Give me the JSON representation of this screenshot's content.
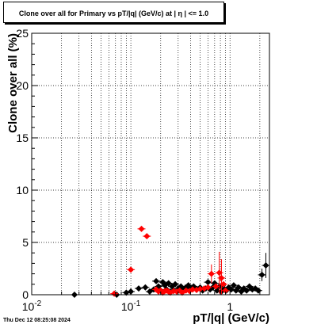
{
  "chart_data": {
    "type": "scatter",
    "title": "Clone  over all for Primary vs pT/|q| (GeV/c) at |  η  | <= 1.0",
    "xlabel": "pT/|q| (GeV/c)",
    "ylabel": "Clone  over all (%)",
    "x_scale": "log",
    "xlim": [
      0.01,
      2.5
    ],
    "ylim": [
      0,
      25
    ],
    "x_ticks": [
      {
        "value": 0.01,
        "base": "10",
        "exp": "-2"
      },
      {
        "value": 0.1,
        "base": "10",
        "exp": "-1"
      },
      {
        "value": 1,
        "base": "1",
        "exp": ""
      }
    ],
    "y_ticks": [
      "0",
      "5",
      "10",
      "15",
      "20",
      "25"
    ],
    "y_tick_values": [
      0,
      5,
      10,
      15,
      20,
      25
    ],
    "grid": true,
    "series": [
      {
        "color": "#000000",
        "marker": "diamond",
        "points": [
          {
            "x": 0.027,
            "y": 0.0
          },
          {
            "x": 0.072,
            "y": 0.0
          },
          {
            "x": 0.09,
            "y": 0.2
          },
          {
            "x": 0.1,
            "y": 0.3
          },
          {
            "x": 0.12,
            "y": 0.6
          },
          {
            "x": 0.14,
            "y": 0.7
          },
          {
            "x": 0.155,
            "y": 0.3
          },
          {
            "x": 0.17,
            "y": 0.5
          },
          {
            "x": 0.18,
            "y": 1.3
          },
          {
            "x": 0.19,
            "y": 0.8
          },
          {
            "x": 0.2,
            "y": 0.4
          },
          {
            "x": 0.21,
            "y": 1.2
          },
          {
            "x": 0.22,
            "y": 0.9
          },
          {
            "x": 0.23,
            "y": 0.5
          },
          {
            "x": 0.24,
            "y": 1.1
          },
          {
            "x": 0.25,
            "y": 0.3
          },
          {
            "x": 0.26,
            "y": 0.8
          },
          {
            "x": 0.27,
            "y": 0.4
          },
          {
            "x": 0.28,
            "y": 1.0
          },
          {
            "x": 0.3,
            "y": 0.6
          },
          {
            "x": 0.32,
            "y": 0.8
          },
          {
            "x": 0.34,
            "y": 0.5
          },
          {
            "x": 0.36,
            "y": 0.7
          },
          {
            "x": 0.38,
            "y": 0.9
          },
          {
            "x": 0.4,
            "y": 0.6
          },
          {
            "x": 0.43,
            "y": 0.8
          },
          {
            "x": 0.46,
            "y": 0.5
          },
          {
            "x": 0.5,
            "y": 0.7
          },
          {
            "x": 0.53,
            "y": 0.4
          },
          {
            "x": 0.57,
            "y": 0.6
          },
          {
            "x": 0.6,
            "y": 1.2
          },
          {
            "x": 0.63,
            "y": 0.5
          },
          {
            "x": 0.67,
            "y": 0.7
          },
          {
            "x": 0.7,
            "y": 1.1
          },
          {
            "x": 0.74,
            "y": 0.4
          },
          {
            "x": 0.78,
            "y": 0.8
          },
          {
            "x": 0.82,
            "y": 0.3
          },
          {
            "x": 0.87,
            "y": 0.6
          },
          {
            "x": 0.92,
            "y": 0.4
          },
          {
            "x": 0.97,
            "y": 0.7
          },
          {
            "x": 1.03,
            "y": 0.5
          },
          {
            "x": 1.09,
            "y": 0.9
          },
          {
            "x": 1.15,
            "y": 0.4
          },
          {
            "x": 1.22,
            "y": 0.7
          },
          {
            "x": 1.3,
            "y": 0.3
          },
          {
            "x": 1.38,
            "y": 0.6
          },
          {
            "x": 1.47,
            "y": 0.4
          },
          {
            "x": 1.57,
            "y": 0.8
          },
          {
            "x": 1.68,
            "y": 0.5
          },
          {
            "x": 1.8,
            "y": 0.6
          },
          {
            "x": 1.93,
            "y": 0.4
          },
          {
            "x": 2.1,
            "y": 1.9,
            "err": 0.6
          },
          {
            "x": 2.3,
            "y": 2.8,
            "err": 1.2
          }
        ]
      },
      {
        "color": "#ff0000",
        "marker": "diamond",
        "points": [
          {
            "x": 0.068,
            "y": 0.1
          },
          {
            "x": 0.1,
            "y": 2.4
          },
          {
            "x": 0.128,
            "y": 6.3
          },
          {
            "x": 0.145,
            "y": 5.6
          },
          {
            "x": 0.18,
            "y": 0.5
          },
          {
            "x": 0.19,
            "y": 0.3
          },
          {
            "x": 0.2,
            "y": 0.4
          },
          {
            "x": 0.21,
            "y": 0.2
          },
          {
            "x": 0.22,
            "y": 0.35
          },
          {
            "x": 0.23,
            "y": 0.4
          },
          {
            "x": 0.24,
            "y": 0.3
          },
          {
            "x": 0.25,
            "y": 0.2
          },
          {
            "x": 0.27,
            "y": 0.35
          },
          {
            "x": 0.29,
            "y": 0.3
          },
          {
            "x": 0.31,
            "y": 0.4
          },
          {
            "x": 0.33,
            "y": 0.2
          },
          {
            "x": 0.36,
            "y": 0.4
          },
          {
            "x": 0.39,
            "y": 0.35
          },
          {
            "x": 0.42,
            "y": 0.5
          },
          {
            "x": 0.46,
            "y": 0.45
          },
          {
            "x": 0.5,
            "y": 0.55
          },
          {
            "x": 0.55,
            "y": 0.6
          },
          {
            "x": 0.6,
            "y": 0.7
          },
          {
            "x": 0.65,
            "y": 2.0,
            "err": 0.9
          },
          {
            "x": 0.72,
            "y": 0.8
          },
          {
            "x": 0.78,
            "y": 2.1,
            "err": 2.0
          },
          {
            "x": 0.82,
            "y": 1.6,
            "err": 1.8
          },
          {
            "x": 0.86,
            "y": 1.0
          },
          {
            "x": 0.9,
            "y": 0.4
          }
        ]
      }
    ],
    "footer": "Thu Dec 12 08:25:08 2024"
  }
}
